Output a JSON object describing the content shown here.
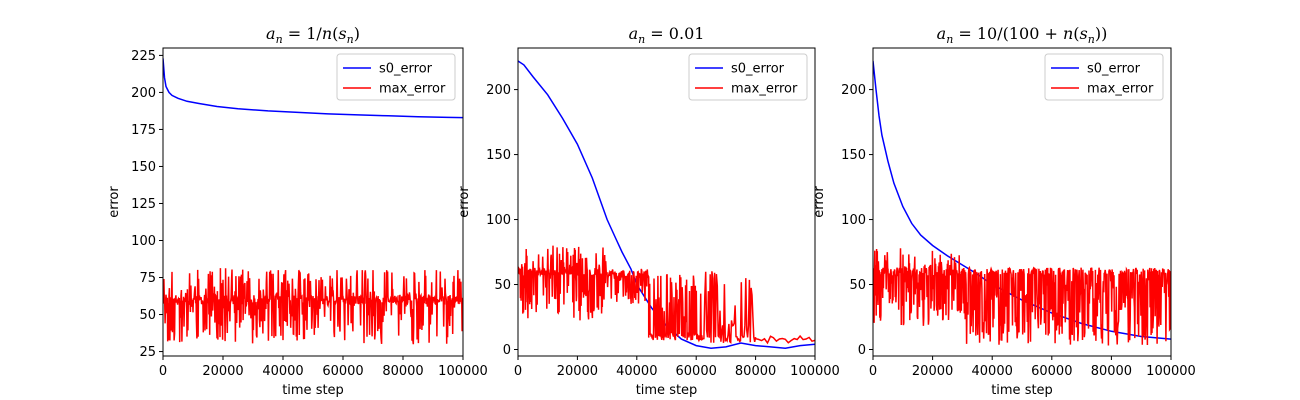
{
  "chart_data": [
    {
      "type": "line",
      "title": "a_n = 1/n(s_n)",
      "xlabel": "time step",
      "ylabel": "error",
      "xlim": [
        0,
        100000
      ],
      "ylim": [
        22,
        230
      ],
      "xticks": [
        0,
        20000,
        40000,
        60000,
        80000,
        100000
      ],
      "xtick_labels": [
        "0",
        "20000",
        "40000",
        "60000",
        "80000",
        "100000"
      ],
      "yticks": [
        25,
        50,
        75,
        100,
        125,
        150,
        175,
        200,
        225
      ],
      "ytick_labels": [
        "25",
        "50",
        "75",
        "100",
        "125",
        "150",
        "175",
        "200",
        "225"
      ],
      "legend": "top-right",
      "grid": false,
      "series": [
        {
          "name": "s0_error",
          "color": "#0000ff",
          "x": [
            0,
            500,
            1000,
            2000,
            3000,
            5000,
            8000,
            12000,
            18000,
            25000,
            35000,
            45000,
            55000,
            65000,
            75000,
            85000,
            95000,
            100000
          ],
          "y": [
            223,
            210,
            204,
            200,
            198,
            196,
            194,
            192.5,
            190.5,
            189,
            187.5,
            186.5,
            185.5,
            184.8,
            184.2,
            183.6,
            183.1,
            183
          ]
        },
        {
          "name": "max_error",
          "color": "#ff0000",
          "noise": {
            "x_start": 0,
            "x_end": 100000,
            "low": 30,
            "high": 82,
            "base": 60,
            "cap_from": 28000,
            "cap_value": 80,
            "count": 700,
            "seed": 11
          }
        }
      ]
    },
    {
      "type": "line",
      "title": "a_n = 0.01",
      "xlabel": "time step",
      "ylabel": "error",
      "xlim": [
        0,
        100000
      ],
      "ylim": [
        -5,
        232
      ],
      "xticks": [
        0,
        20000,
        40000,
        60000,
        80000,
        100000
      ],
      "xtick_labels": [
        "0",
        "20000",
        "40000",
        "60000",
        "80000",
        "100000"
      ],
      "yticks": [
        0,
        50,
        100,
        150,
        200
      ],
      "ytick_labels": [
        "0",
        "50",
        "100",
        "150",
        "200"
      ],
      "legend": "top-right",
      "grid": false,
      "series": [
        {
          "name": "s0_error",
          "color": "#0000ff",
          "x": [
            0,
            2000,
            5000,
            10000,
            15000,
            20000,
            25000,
            30000,
            33000,
            35000,
            38000,
            40000,
            45000,
            50000,
            55000,
            60000,
            65000,
            70000,
            75000,
            80000,
            85000,
            90000,
            95000,
            100000
          ],
          "y": [
            222,
            219,
            210,
            196,
            178,
            158,
            132,
            100,
            85,
            75,
            62,
            50,
            32,
            18,
            8,
            3,
            1,
            2,
            5,
            3,
            2,
            1,
            3,
            4
          ]
        },
        {
          "name": "max_error",
          "color": "#ff0000",
          "segments": [
            {
              "x_start": 0,
              "x_end": 30000,
              "low": 22,
              "high": 80,
              "base": 60,
              "count": 260,
              "seed": 21
            },
            {
              "x_start": 30000,
              "x_end": 44000,
              "low": 35,
              "high": 62,
              "base": 58,
              "count": 90,
              "seed": 22
            },
            {
              "x_start": 44000,
              "x_end": 62000,
              "low": 8,
              "high": 60,
              "base": 10,
              "count": 110,
              "seed": 23
            },
            {
              "x_start": 62000,
              "x_end": 80000,
              "low": 5,
              "high": 62,
              "base": 8,
              "count": 60,
              "seed": 24
            },
            {
              "x_start": 80000,
              "x_end": 100000,
              "low": 6,
              "high": 9,
              "base": 8,
              "count": 20,
              "seed": 25
            }
          ]
        }
      ]
    },
    {
      "type": "line",
      "title": "a_n = 10/(100 + n(s_n))",
      "xlabel": "time step",
      "ylabel": "error",
      "xlim": [
        0,
        100000
      ],
      "ylim": [
        -5,
        232
      ],
      "xticks": [
        0,
        20000,
        40000,
        60000,
        80000,
        100000
      ],
      "xtick_labels": [
        "0",
        "20000",
        "40000",
        "60000",
        "80000",
        "100000"
      ],
      "yticks": [
        0,
        50,
        100,
        150,
        200
      ],
      "ytick_labels": [
        "0",
        "50",
        "100",
        "150",
        "200"
      ],
      "legend": "top-right",
      "grid": false,
      "series": [
        {
          "name": "s0_error",
          "color": "#0000ff",
          "x": [
            0,
            1000,
            2000,
            3000,
            5000,
            7000,
            10000,
            13000,
            16000,
            20000,
            25000,
            30000,
            35000,
            40000,
            50000,
            60000,
            70000,
            80000,
            90000,
            100000
          ],
          "y": [
            222,
            200,
            180,
            165,
            145,
            128,
            110,
            97,
            88,
            80,
            72,
            65,
            58,
            50,
            38,
            28,
            20,
            14,
            10,
            8
          ]
        },
        {
          "name": "max_error",
          "color": "#ff0000",
          "segments": [
            {
              "x_start": 0,
              "x_end": 30000,
              "low": 18,
              "high": 78,
              "base": 60,
              "count": 250,
              "seed": 31
            },
            {
              "x_start": 30000,
              "x_end": 100000,
              "low": 3,
              "high": 62,
              "base": 60,
              "count": 450,
              "seed": 32
            }
          ]
        }
      ]
    }
  ],
  "titles": [
    {
      "pre": "a",
      "sub1": "n",
      "mid": " = 1/",
      "it": "n",
      "paren_open": "(",
      "it2": "s",
      "sub2": "n",
      "post": ")"
    },
    {
      "pre": "a",
      "sub1": "n",
      "mid": " = 0.01"
    },
    {
      "pre": "a",
      "sub1": "n",
      "mid": " = 10/(100 + ",
      "it": "n",
      "paren_open": "(",
      "it2": "s",
      "sub2": "n",
      "post": "))"
    }
  ]
}
